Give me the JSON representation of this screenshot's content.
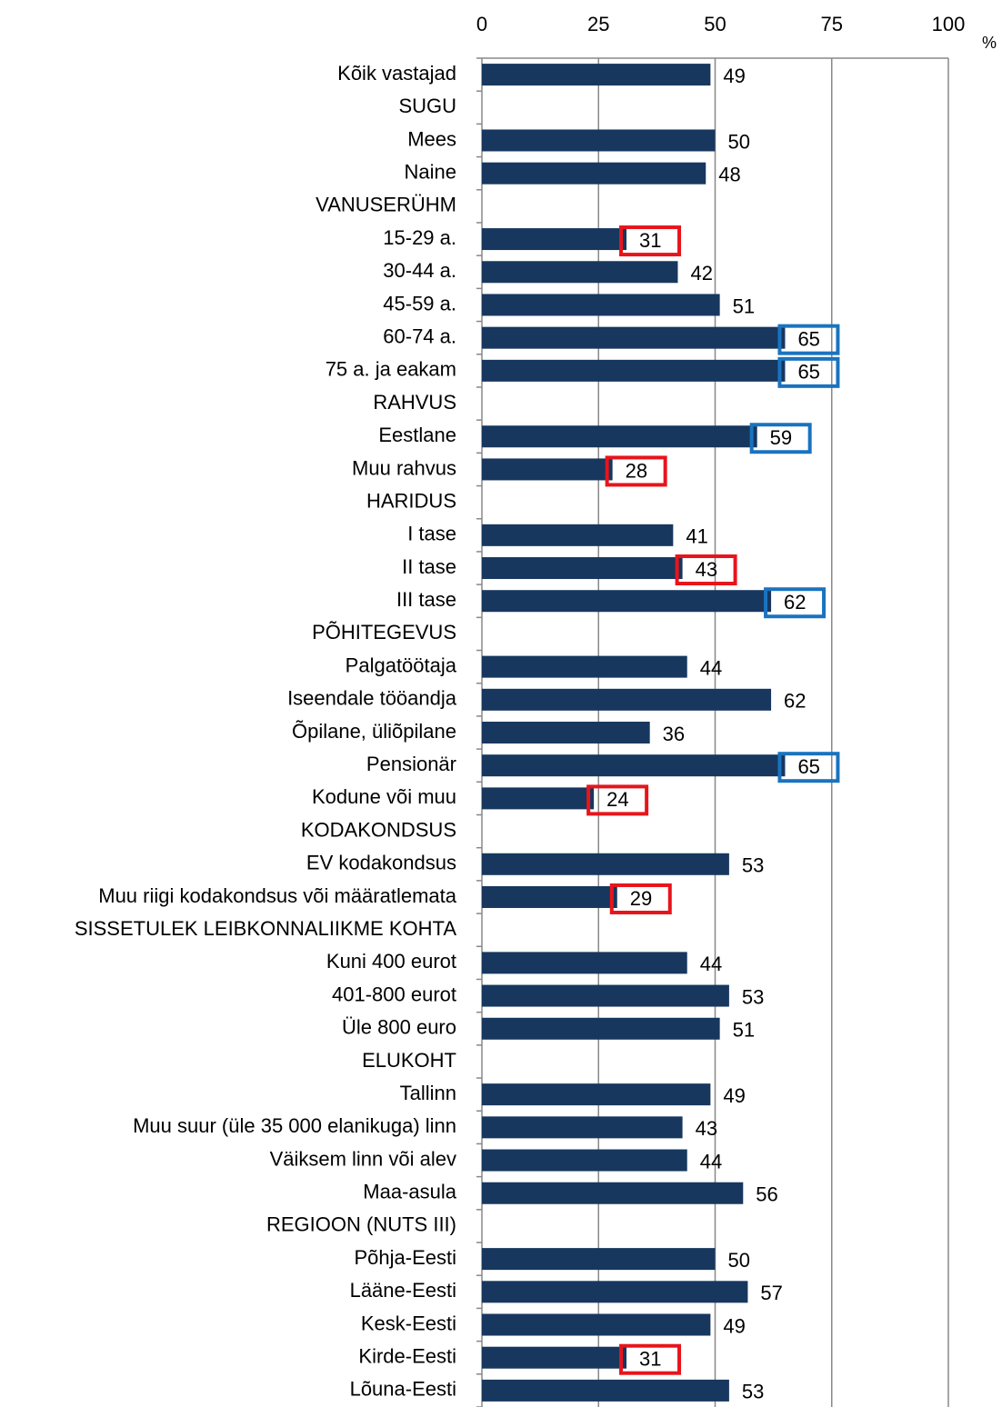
{
  "chart_data": {
    "type": "bar",
    "orientation": "horizontal",
    "xlabel": "%",
    "categories": [
      "Kõik vastajad",
      "SUGU",
      "Mees",
      "Naine",
      "VANUSERÜHM",
      "15-29 a.",
      "30-44 a.",
      "45-59 a.",
      "60-74 a.",
      "75 a. ja eakam",
      "RAHVUS",
      "Eestlane",
      "Muu rahvus",
      "HARIDUS",
      "I tase",
      "II tase",
      "III tase",
      "PÕHITEGEVUS",
      "Palgatöötaja",
      "Iseendale tööandja",
      "Õpilane, üliõpilane",
      "Pensionär",
      "Kodune või muu",
      "KODAKONDSUS",
      "EV kodakondsus",
      "Muu riigi kodakondsus või määratlemata",
      "SISSETULEK LEIBKONNALIIKME KOHTA",
      "Kuni 400 eurot",
      "401-800 eurot",
      "Üle 800 euro",
      "ELUKOHT",
      "Tallinn",
      "Muu suur (üle 35 000 elanikuga) linn",
      "Väiksem linn või alev",
      "Maa-asula",
      "REGIOON (NUTS III)",
      "Põhja-Eesti",
      "Lääne-Eesti",
      "Kesk-Eesti",
      "Kirde-Eesti",
      "Lõuna-Eesti"
    ],
    "values": [
      49,
      null,
      50,
      48,
      null,
      31,
      42,
      51,
      65,
      65,
      null,
      59,
      28,
      null,
      41,
      43,
      62,
      null,
      44,
      62,
      36,
      65,
      24,
      null,
      53,
      29,
      null,
      44,
      53,
      51,
      null,
      49,
      43,
      44,
      56,
      null,
      50,
      57,
      49,
      31,
      53
    ],
    "highlights": [
      null,
      null,
      null,
      null,
      null,
      "#e8141b",
      null,
      null,
      "#1a73c0",
      "#1a73c0",
      null,
      "#1a73c0",
      "#e8141b",
      null,
      null,
      "#e8141b",
      "#1a73c0",
      null,
      null,
      null,
      null,
      "#1a73c0",
      "#e8141b",
      null,
      null,
      "#e8141b",
      null,
      null,
      null,
      null,
      null,
      null,
      null,
      null,
      null,
      null,
      null,
      null,
      null,
      "#e8141b",
      null
    ],
    "color": "#17375e",
    "xlim": [
      0,
      100
    ],
    "xticks": [
      0,
      25,
      50,
      75,
      100
    ],
    "grid": true
  }
}
